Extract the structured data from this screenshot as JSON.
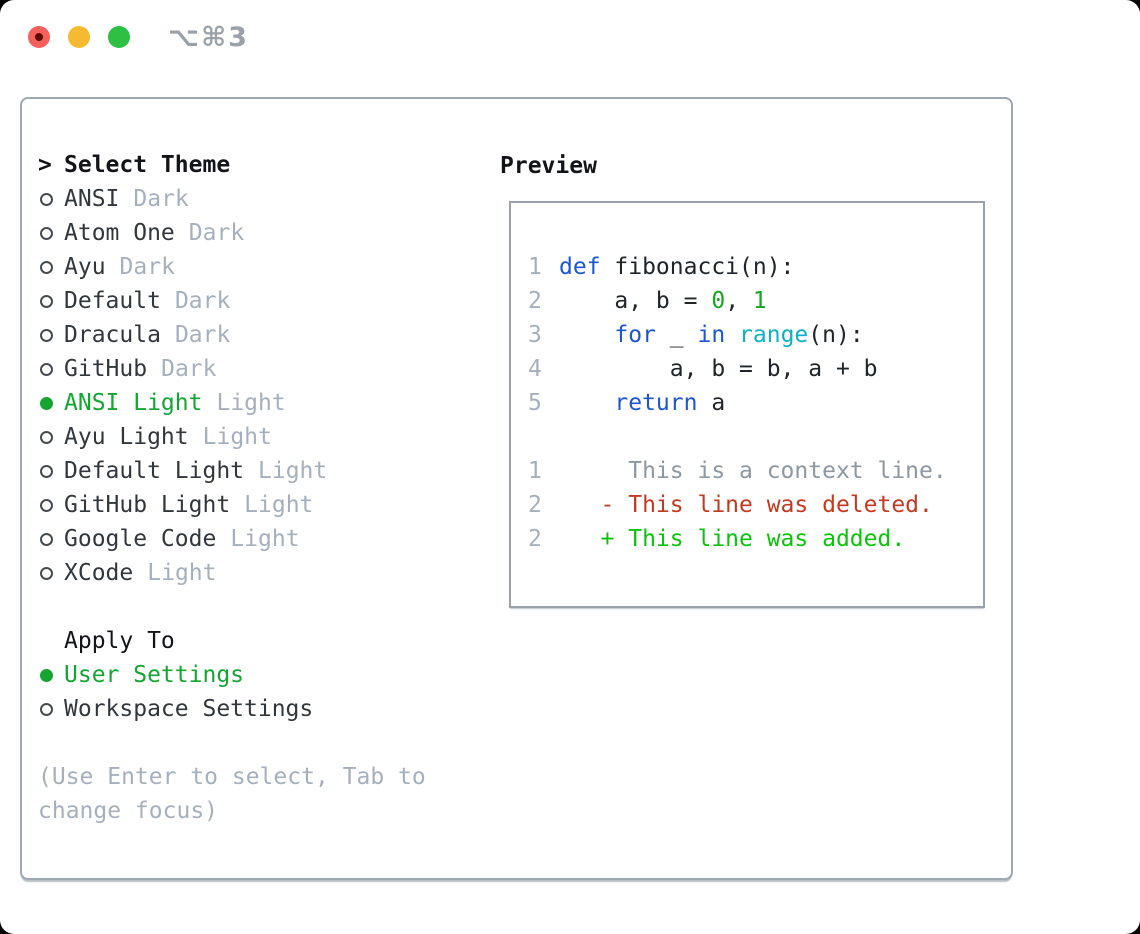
{
  "window": {
    "title": "⌥⌘3",
    "controls": {
      "close": "close-button",
      "minimize": "minimize-button",
      "zoom": "zoom-button"
    }
  },
  "theme_section": {
    "header_prefix": ">",
    "header": "Select Theme",
    "items": [
      {
        "name": "ANSI",
        "tag": "Dark",
        "selected": false
      },
      {
        "name": "Atom One",
        "tag": "Dark",
        "selected": false
      },
      {
        "name": "Ayu",
        "tag": "Dark",
        "selected": false
      },
      {
        "name": "Default",
        "tag": "Dark",
        "selected": false
      },
      {
        "name": "Dracula",
        "tag": "Dark",
        "selected": false
      },
      {
        "name": "GitHub",
        "tag": "Dark",
        "selected": false
      },
      {
        "name": "ANSI Light",
        "tag": "Light",
        "selected": true
      },
      {
        "name": "Ayu Light",
        "tag": "Light",
        "selected": false
      },
      {
        "name": "Default Light",
        "tag": "Light",
        "selected": false
      },
      {
        "name": "GitHub Light",
        "tag": "Light",
        "selected": false
      },
      {
        "name": "Google Code",
        "tag": "Light",
        "selected": false
      },
      {
        "name": "XCode",
        "tag": "Light",
        "selected": false
      }
    ]
  },
  "apply_section": {
    "header": "Apply To",
    "items": [
      {
        "name": "User Settings",
        "selected": true
      },
      {
        "name": "Workspace Settings",
        "selected": false
      }
    ]
  },
  "help_text": "(Use Enter to select, Tab to change focus)",
  "preview": {
    "header": "Preview",
    "lines": [
      {
        "n": "1",
        "s": [
          [
            "def",
            "kw"
          ],
          [
            " fibonacci(n):",
            "pl"
          ]
        ]
      },
      {
        "n": "2",
        "s": [
          [
            "    a, b = ",
            "pl"
          ],
          [
            "0",
            "nm"
          ],
          [
            ", ",
            "pl"
          ],
          [
            "1",
            "nm"
          ]
        ]
      },
      {
        "n": "3",
        "s": [
          [
            "    ",
            "pl"
          ],
          [
            "for",
            "kw"
          ],
          [
            " _ ",
            "pl"
          ],
          [
            "in",
            "kw"
          ],
          [
            " ",
            "pl"
          ],
          [
            "range",
            "fn"
          ],
          [
            "(n):",
            "pl"
          ]
        ]
      },
      {
        "n": "4",
        "s": [
          [
            "        a, b = b, a + b",
            "pl"
          ]
        ]
      },
      {
        "n": "5",
        "s": [
          [
            "    ",
            "pl"
          ],
          [
            "return",
            "kw"
          ],
          [
            " a",
            "pl"
          ]
        ]
      },
      {
        "n": "",
        "s": []
      },
      {
        "n": "1",
        "s": [
          [
            "     This is a context line.",
            "ctx"
          ]
        ]
      },
      {
        "n": "2",
        "s": [
          [
            "   - This line was deleted.",
            "del"
          ]
        ]
      },
      {
        "n": "2",
        "s": [
          [
            "   + This line was added.",
            "add"
          ]
        ]
      }
    ]
  },
  "colors": {
    "selection_green": "#14a532",
    "keyword_blue": "#1b57d2",
    "builtin_cyan": "#0db0c4",
    "number_green": "#17a41e",
    "diff_red": "#c43a21",
    "diff_green": "#0cc30c",
    "traffic_red": "#f5605a",
    "traffic_yellow": "#f5ba30",
    "traffic_green": "#2ebf43",
    "traffic_red_dot": "#5e0b06",
    "panel_border": "#9ea8b4",
    "muted_gray": "#a6b0bd"
  }
}
